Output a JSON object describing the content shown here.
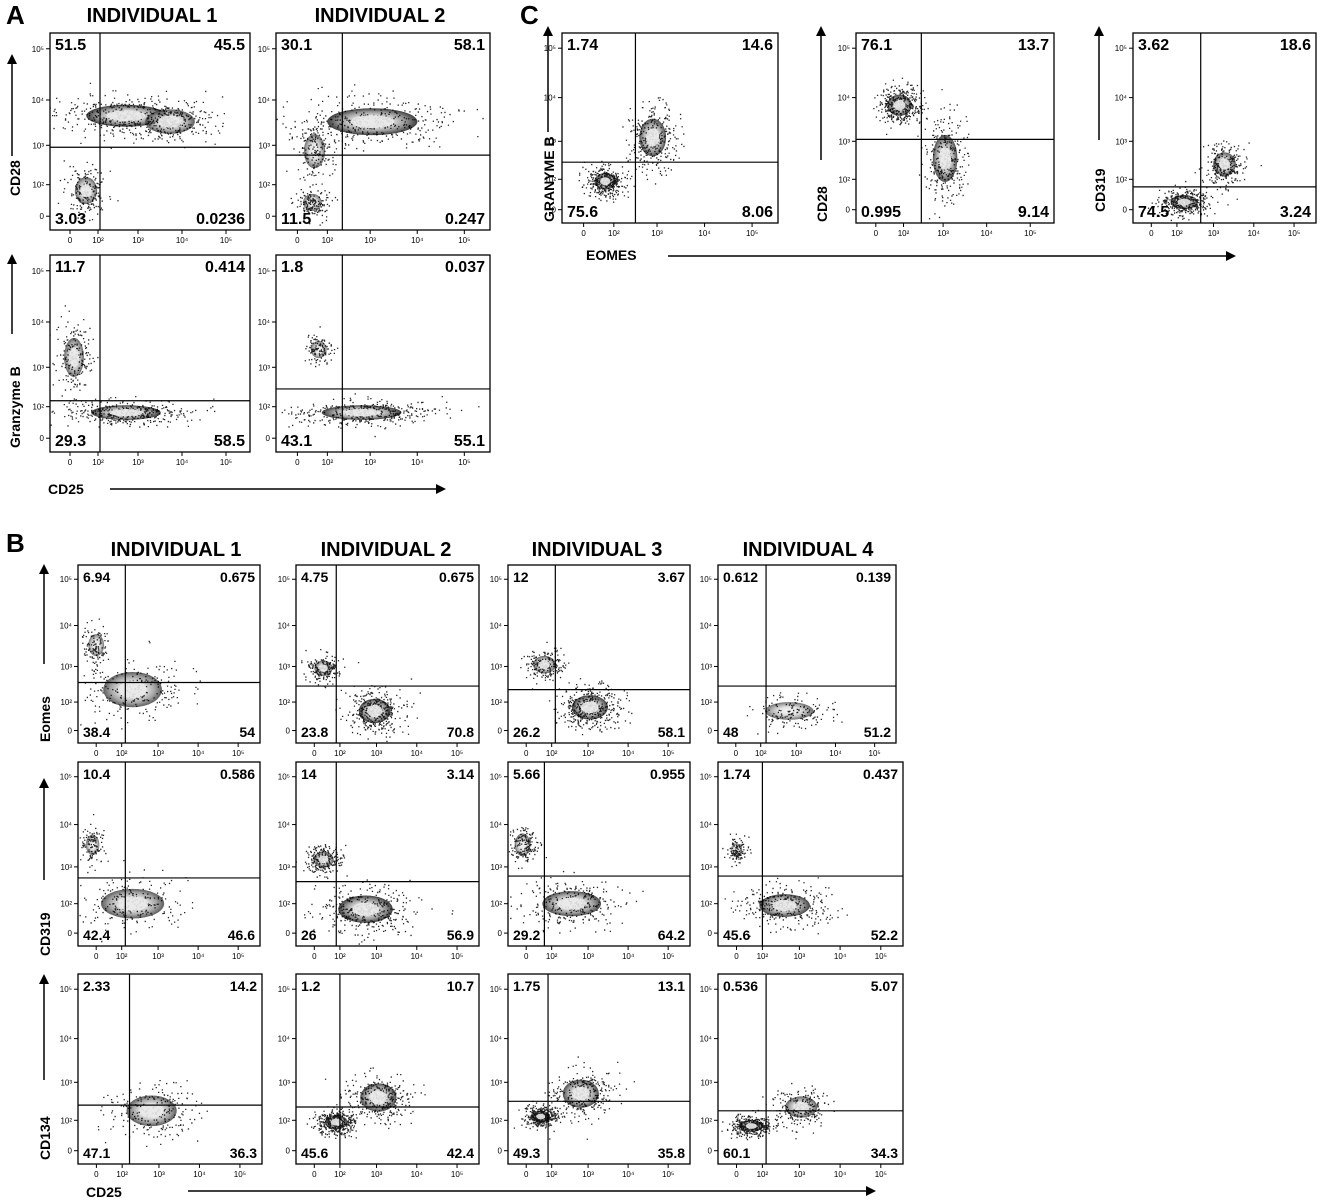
{
  "figure": {
    "panel_labels": [
      "A",
      "B",
      "C"
    ],
    "colors": {
      "ink": "#111111",
      "density_core": "#f2f2f2",
      "density_mid": "#9a9a9a",
      "dots": "#000000"
    }
  },
  "panel_A": {
    "column_titles": [
      "INDIVIDUAL 1",
      "INDIVIDUAL 2"
    ],
    "y_axis_titles": [
      "CD28",
      "Granzyme B"
    ],
    "x_axis_title": "CD25"
  },
  "panel_B": {
    "column_titles": [
      "INDIVIDUAL 1",
      "INDIVIDUAL 2",
      "INDIVIDUAL 3",
      "INDIVIDUAL 4"
    ],
    "y_axis_titles": [
      "Eomes",
      "CD319",
      "CD134"
    ],
    "x_axis_title": "CD25"
  },
  "panel_C": {
    "y_axis_titles": [
      "GRANYME B",
      "CD28",
      "CD319"
    ],
    "x_axis_title": "EOMES"
  },
  "tick_labels": [
    "0",
    "10²",
    "10³",
    "10⁴",
    "10⁵"
  ],
  "chart_data": [
    {
      "type": "scatter",
      "panel": "A",
      "individual": "INDIVIDUAL 1",
      "x_marker": "CD25",
      "y_marker": "CD28",
      "quadrants_percent": {
        "upper_left": "51.5",
        "upper_right": "45.5",
        "lower_left": "3.03",
        "lower_right": "0.0236"
      }
    },
    {
      "type": "scatter",
      "panel": "A",
      "individual": "INDIVIDUAL 2",
      "x_marker": "CD25",
      "y_marker": "CD28",
      "quadrants_percent": {
        "upper_left": "30.1",
        "upper_right": "58.1",
        "lower_left": "11.5",
        "lower_right": "0.247"
      }
    },
    {
      "type": "scatter",
      "panel": "A",
      "individual": "INDIVIDUAL 1",
      "x_marker": "CD25",
      "y_marker": "Granzyme B",
      "quadrants_percent": {
        "upper_left": "11.7",
        "upper_right": "0.414",
        "lower_left": "29.3",
        "lower_right": "58.5"
      }
    },
    {
      "type": "scatter",
      "panel": "A",
      "individual": "INDIVIDUAL 2",
      "x_marker": "CD25",
      "y_marker": "Granzyme B",
      "quadrants_percent": {
        "upper_left": "1.8",
        "upper_right": "0.037",
        "lower_left": "43.1",
        "lower_right": "55.1"
      }
    },
    {
      "type": "scatter",
      "panel": "B",
      "individual": "INDIVIDUAL 1",
      "x_marker": "CD25",
      "y_marker": "Eomes",
      "quadrants_percent": {
        "upper_left": "6.94",
        "upper_right": "0.675",
        "lower_left": "38.4",
        "lower_right": "54"
      }
    },
    {
      "type": "scatter",
      "panel": "B",
      "individual": "INDIVIDUAL 2",
      "x_marker": "CD25",
      "y_marker": "Eomes",
      "quadrants_percent": {
        "upper_left": "4.75",
        "upper_right": "0.675",
        "lower_left": "23.8",
        "lower_right": "70.8"
      }
    },
    {
      "type": "scatter",
      "panel": "B",
      "individual": "INDIVIDUAL 3",
      "x_marker": "CD25",
      "y_marker": "Eomes",
      "quadrants_percent": {
        "upper_left": "12",
        "upper_right": "3.67",
        "lower_left": "26.2",
        "lower_right": "58.1"
      }
    },
    {
      "type": "scatter",
      "panel": "B",
      "individual": "INDIVIDUAL 4",
      "x_marker": "CD25",
      "y_marker": "Eomes",
      "quadrants_percent": {
        "upper_left": "0.612",
        "upper_right": "0.139",
        "lower_left": "48",
        "lower_right": "51.2"
      }
    },
    {
      "type": "scatter",
      "panel": "B",
      "individual": "INDIVIDUAL 1",
      "x_marker": "CD25",
      "y_marker": "CD319",
      "quadrants_percent": {
        "upper_left": "10.4",
        "upper_right": "0.586",
        "lower_left": "42.4",
        "lower_right": "46.6"
      }
    },
    {
      "type": "scatter",
      "panel": "B",
      "individual": "INDIVIDUAL 2",
      "x_marker": "CD25",
      "y_marker": "CD319",
      "quadrants_percent": {
        "upper_left": "14",
        "upper_right": "3.14",
        "lower_left": "26",
        "lower_right": "56.9"
      }
    },
    {
      "type": "scatter",
      "panel": "B",
      "individual": "INDIVIDUAL 3",
      "x_marker": "CD25",
      "y_marker": "CD319",
      "quadrants_percent": {
        "upper_left": "5.66",
        "upper_right": "0.955",
        "lower_left": "29.2",
        "lower_right": "64.2"
      }
    },
    {
      "type": "scatter",
      "panel": "B",
      "individual": "INDIVIDUAL 4",
      "x_marker": "CD25",
      "y_marker": "CD319",
      "quadrants_percent": {
        "upper_left": "1.74",
        "upper_right": "0.437",
        "lower_left": "45.6",
        "lower_right": "52.2"
      }
    },
    {
      "type": "scatter",
      "panel": "B",
      "individual": "INDIVIDUAL 1",
      "x_marker": "CD25",
      "y_marker": "CD134",
      "quadrants_percent": {
        "upper_left": "2.33",
        "upper_right": "14.2",
        "lower_left": "47.1",
        "lower_right": "36.3"
      }
    },
    {
      "type": "scatter",
      "panel": "B",
      "individual": "INDIVIDUAL 2",
      "x_marker": "CD25",
      "y_marker": "CD134",
      "quadrants_percent": {
        "upper_left": "1.2",
        "upper_right": "10.7",
        "lower_left": "45.6",
        "lower_right": "42.4"
      }
    },
    {
      "type": "scatter",
      "panel": "B",
      "individual": "INDIVIDUAL 3",
      "x_marker": "CD25",
      "y_marker": "CD134",
      "quadrants_percent": {
        "upper_left": "1.75",
        "upper_right": "13.1",
        "lower_left": "49.3",
        "lower_right": "35.8"
      }
    },
    {
      "type": "scatter",
      "panel": "B",
      "individual": "INDIVIDUAL 4",
      "x_marker": "CD25",
      "y_marker": "CD134",
      "quadrants_percent": {
        "upper_left": "0.536",
        "upper_right": "5.07",
        "lower_left": "60.1",
        "lower_right": "34.3"
      }
    },
    {
      "type": "scatter",
      "panel": "C",
      "x_marker": "EOMES",
      "y_marker": "GRANYME B",
      "quadrants_percent": {
        "upper_left": "1.74",
        "upper_right": "14.6",
        "lower_left": "75.6",
        "lower_right": "8.06"
      }
    },
    {
      "type": "scatter",
      "panel": "C",
      "x_marker": "EOMES",
      "y_marker": "CD28",
      "quadrants_percent": {
        "upper_left": "76.1",
        "upper_right": "13.7",
        "lower_left": "0.995",
        "lower_right": "9.14"
      }
    },
    {
      "type": "scatter",
      "panel": "C",
      "x_marker": "EOMES",
      "y_marker": "CD319",
      "quadrants_percent": {
        "upper_left": "3.62",
        "upper_right": "18.6",
        "lower_left": "74.5",
        "lower_right": "3.24"
      }
    }
  ]
}
